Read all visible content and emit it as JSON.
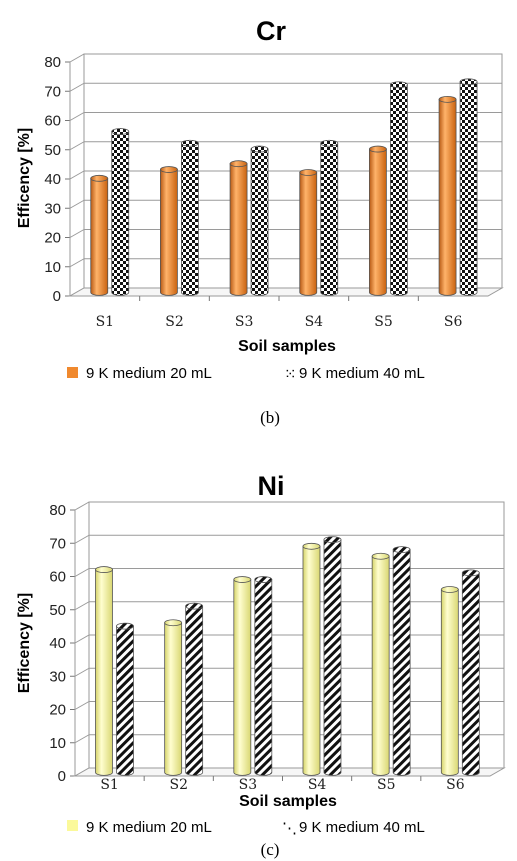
{
  "chart_data": [
    {
      "type": "bar",
      "title": "Cr",
      "caption": "(b)",
      "xlabel": "Soil samples",
      "ylabel": "Efficency  [%]",
      "ylim": [
        0,
        80
      ],
      "yticks": [
        "0",
        "10",
        "20",
        "30",
        "40",
        "50",
        "60",
        "70",
        "80"
      ],
      "categories": [
        "S1",
        "S2",
        "S3",
        "S4",
        "S5",
        "S6"
      ],
      "series": [
        {
          "name": "9 K medium 20 mL",
          "values": [
            39,
            42,
            44,
            41,
            49,
            66
          ],
          "color": "#f0892e",
          "pattern": "solid"
        },
        {
          "name": "9 K medium 40 mL",
          "values": [
            55,
            51,
            49,
            51,
            71,
            72
          ],
          "color": "#000000",
          "pattern": "checker"
        }
      ],
      "grid": true,
      "legend": "bottom"
    },
    {
      "type": "bar",
      "title": "Ni",
      "caption": "(c)",
      "xlabel": "Soil samples",
      "ylabel": "Efficency  [%]",
      "ylim": [
        0,
        80
      ],
      "yticks": [
        "0",
        "10",
        "20",
        "30",
        "40",
        "50",
        "60",
        "70",
        "80"
      ],
      "categories": [
        "S1",
        "S2",
        "S3",
        "S4",
        "S5",
        "S6"
      ],
      "series": [
        {
          "name": "9 K medium 20 mL",
          "values": [
            61,
            45,
            58,
            68,
            65,
            55
          ],
          "color": "#fbf99a",
          "pattern": "solid"
        },
        {
          "name": "9 K medium 40 mL",
          "values": [
            44,
            50,
            58,
            70,
            67,
            60
          ],
          "color": "#000000",
          "pattern": "diagonal"
        }
      ],
      "grid": true,
      "legend": "bottom"
    }
  ]
}
